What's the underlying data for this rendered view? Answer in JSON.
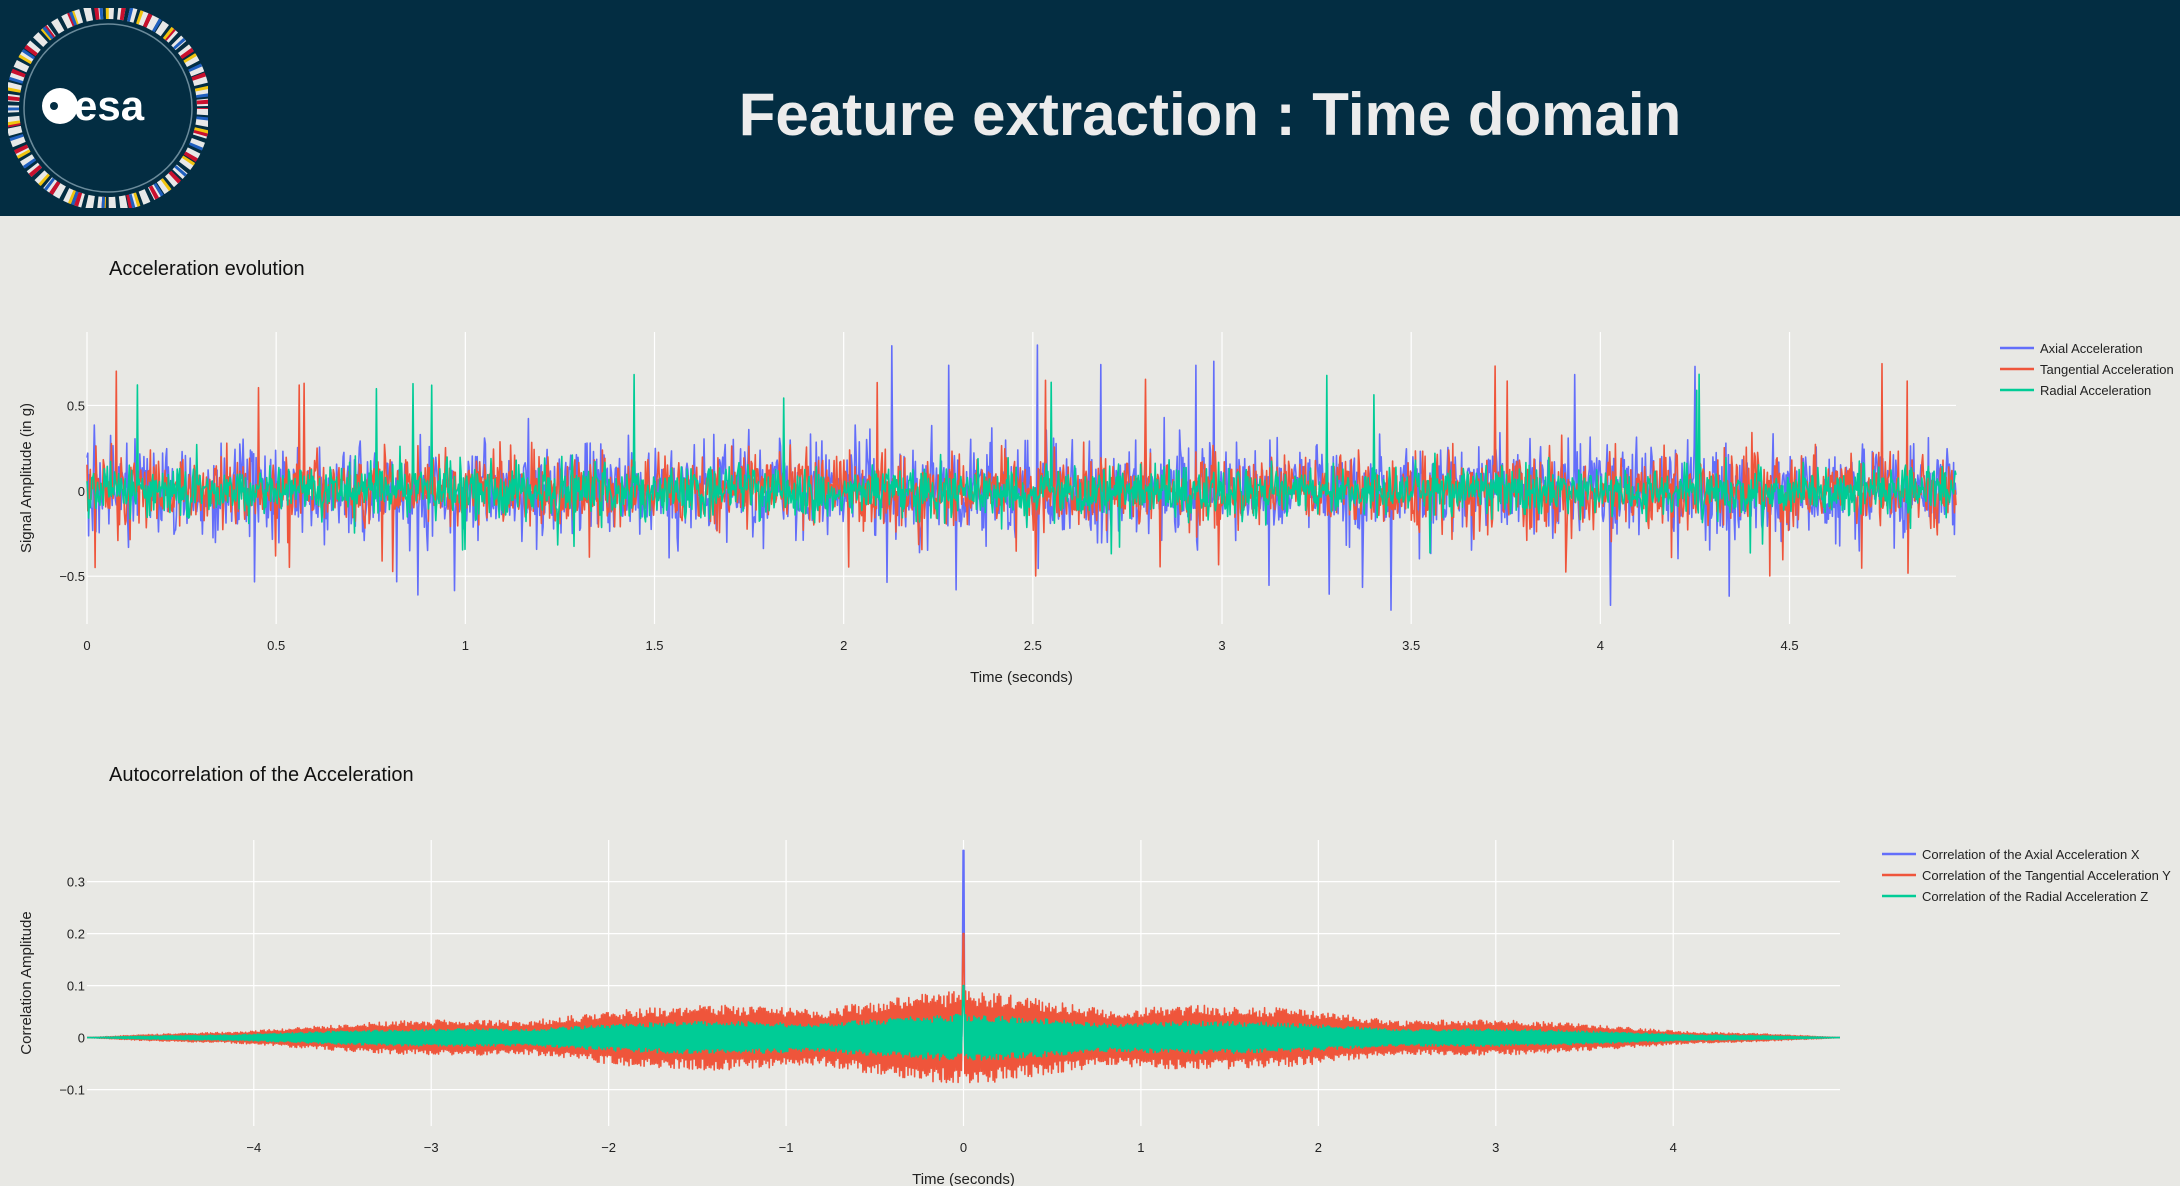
{
  "header": {
    "title": "Feature extraction : Time domain",
    "logo_text": "esa",
    "background": "#032d42"
  },
  "colors": {
    "axial": "#636efa",
    "tangential": "#ef553b",
    "radial": "#00cc96"
  },
  "chart_data": [
    {
      "type": "line",
      "title": "Acceleration evolution",
      "xlabel": "Time (seconds)",
      "ylabel": "Signal Amplitude (in g)",
      "xlim": [
        0,
        4.94
      ],
      "ylim": [
        -0.78,
        0.93
      ],
      "xticks": [
        0,
        0.5,
        1,
        1.5,
        2,
        2.5,
        3,
        3.5,
        4,
        4.5
      ],
      "xtick_labels": [
        "0",
        "0.5",
        "1",
        "1.5",
        "2",
        "2.5",
        "3",
        "3.5",
        "4",
        "4.5"
      ],
      "yticks": [
        -0.5,
        0,
        0.5
      ],
      "ytick_labels": [
        "−0.5",
        "0",
        "0.5"
      ],
      "grid": true,
      "legend_position": "top-right",
      "series": [
        {
          "name": "Axial Acceleration",
          "color": "#636efa",
          "amplitude": 0.22,
          "peak_max": 0.86,
          "peak_min": -0.7
        },
        {
          "name": "Tangential Acceleration",
          "color": "#ef553b",
          "amplitude": 0.17,
          "peak_max": 0.8,
          "peak_min": -0.5
        },
        {
          "name": "Radial Acceleration",
          "color": "#00cc96",
          "amplitude": 0.12,
          "peak_max": 0.69,
          "peak_min": -0.4
        }
      ]
    },
    {
      "type": "line",
      "title": "Autocorrelation of the Acceleration",
      "xlabel": "Time (seconds)",
      "ylabel": "Correlation Amplitude",
      "xlim": [
        -4.94,
        4.94
      ],
      "ylim": [
        -0.17,
        0.38
      ],
      "xticks": [
        -4,
        -3,
        -2,
        -1,
        0,
        1,
        2,
        3,
        4
      ],
      "xtick_labels": [
        "−4",
        "−3",
        "−2",
        "−1",
        "0",
        "1",
        "2",
        "3",
        "4"
      ],
      "yticks": [
        -0.1,
        0,
        0.1,
        0.2,
        0.3
      ],
      "ytick_labels": [
        "−0.1",
        "0",
        "0.1",
        "0.2",
        "0.3"
      ],
      "grid": true,
      "legend_position": "top-right",
      "series": [
        {
          "name": "Correlation of the Axial Acceleration X",
          "color": "#636efa",
          "center_peak": 0.36,
          "envelope": 0.06
        },
        {
          "name": "Correlation of the Tangential Acceleration Y",
          "color": "#ef553b",
          "center_peak": 0.2,
          "envelope": 0.09
        },
        {
          "name": "Correlation of the Radial Acceleration Z",
          "color": "#00cc96",
          "center_peak": 0.1,
          "envelope": 0.045
        }
      ]
    }
  ]
}
